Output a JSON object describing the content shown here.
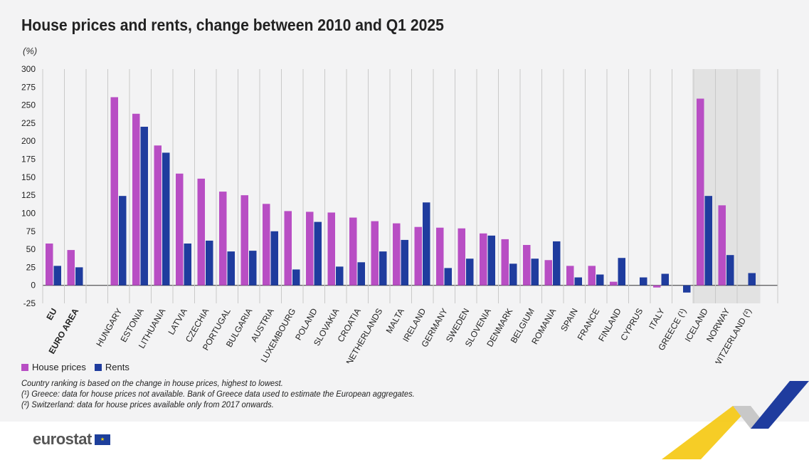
{
  "title": "House prices and rents, change between 2010 and Q1 2025",
  "unit": "(%)",
  "legend": {
    "house_prices": "House prices",
    "rents": "Rents"
  },
  "notes": {
    "line1": "Country ranking is based on the change in house prices, highest to lowest.",
    "line2": "(¹) Greece: data for house prices not available. Bank of Greece data used to estimate the European aggregates.",
    "line3": "(²) Switzerland: data for house prices available only from 2017 onwards."
  },
  "footer": {
    "logo_text": "eurostat"
  },
  "colors": {
    "house_prices": "#b84ec4",
    "rents": "#1f3c9e",
    "background": "#f3f3f4",
    "shaded_group": "#e2e2e2",
    "grid": "#c9c9c9"
  },
  "chart_data": {
    "type": "bar",
    "title": "House prices and rents, change between 2010 and Q1 2025",
    "ylabel": "(%)",
    "xlabel": "",
    "ylim": [
      -25,
      300
    ],
    "yticks": [
      -25,
      0,
      25,
      50,
      75,
      100,
      125,
      150,
      175,
      200,
      225,
      250,
      275,
      300
    ],
    "grid": "vertical",
    "categories": [
      "EU",
      "EURO AREA",
      "HUNGARY",
      "ESTONIA",
      "LITHUANIA",
      "LATVIA",
      "CZECHIA",
      "PORTUGAL",
      "BULGARIA",
      "AUSTRIA",
      "LUXEMBOURG",
      "POLAND",
      "SLOVAKIA",
      "CROATIA",
      "NETHERLANDS",
      "MALTA",
      "IRELAND",
      "GERMANY",
      "SWEDEN",
      "SLOVENIA",
      "DENMARK",
      "BELGIUM",
      "ROMANIA",
      "SPAIN",
      "FRANCE",
      "FINLAND",
      "CYPRUS",
      "ITALY",
      "GREECE (¹)",
      "ICELAND",
      "NORWAY",
      "SWITZERLAND (²)"
    ],
    "bold_categories": [
      "EU",
      "EURO AREA"
    ],
    "shaded_categories": [
      "ICELAND",
      "NORWAY",
      "SWITZERLAND (²)"
    ],
    "series": [
      {
        "name": "House prices",
        "values": [
          58,
          49,
          261,
          238,
          194,
          155,
          148,
          130,
          125,
          113,
          103,
          102,
          101,
          94,
          89,
          86,
          81,
          80,
          79,
          72,
          64,
          56,
          35,
          27,
          27,
          5,
          null,
          -3,
          null,
          259,
          111,
          null
        ]
      },
      {
        "name": "Rents",
        "values": [
          27,
          25,
          124,
          220,
          184,
          58,
          62,
          47,
          48,
          75,
          22,
          88,
          26,
          32,
          47,
          63,
          115,
          24,
          37,
          69,
          30,
          37,
          61,
          11,
          15,
          38,
          11,
          16,
          -10,
          124,
          42,
          17
        ]
      }
    ]
  }
}
